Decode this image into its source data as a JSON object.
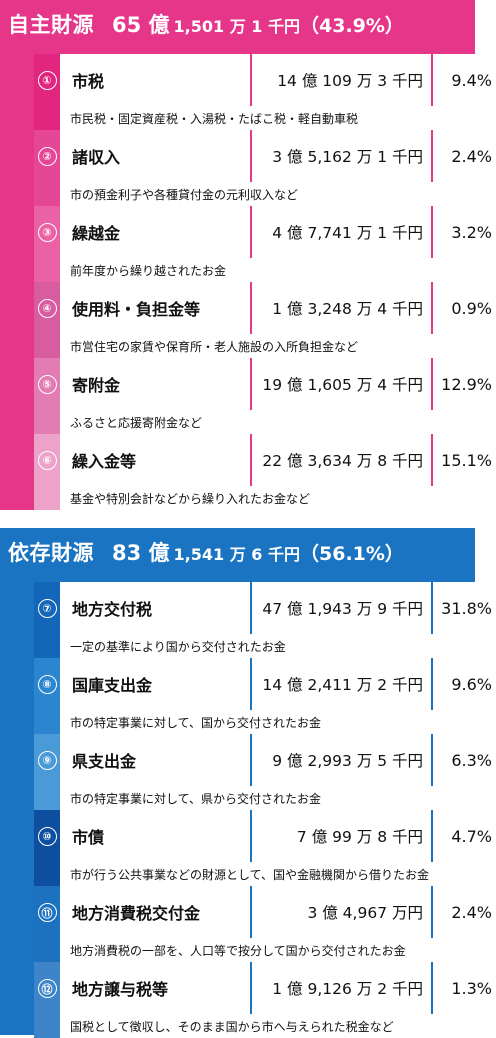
{
  "sections": [
    {
      "name": "自主財源",
      "amount_big": "65 億",
      "amount_rest": "1,501 万 1 千円",
      "percent": "（43.9%）",
      "items": [
        {
          "num": "①",
          "name": "市税",
          "amount": "14 億 109 万 3 千円",
          "percent": "9.4%",
          "desc": "市民税・固定資産税・入湯税・たばこ税・軽自動車税",
          "color": "#e0267e"
        },
        {
          "num": "②",
          "name": "諸収入",
          "amount": "3 億 5,162 万 1 千円",
          "percent": "2.4%",
          "desc": "市の預金利子や各種貸付金の元利収入など",
          "color": "#e64696"
        },
        {
          "num": "③",
          "name": "繰越金",
          "amount": "4 億 7,741 万 1 千円",
          "percent": "3.2%",
          "desc": "前年度から繰り越されたお金",
          "color": "#ea62a5"
        },
        {
          "num": "④",
          "name": "使用料・負担金等",
          "amount": "1 億 3,248 万 4 千円",
          "percent": "0.9%",
          "desc": "市営住宅の家賃や保育所・老人施設の入所負担金など",
          "color": "#d85ca0"
        },
        {
          "num": "⑤",
          "name": "寄附金",
          "amount": "19 億 1,605 万 4 千円",
          "percent": "12.9%",
          "desc": "ふるさと応援寄附金など",
          "color": "#e47cb4"
        },
        {
          "num": "⑥",
          "name": "繰入金等",
          "amount": "22 億 3,634 万 8 千円",
          "percent": "15.1%",
          "desc": "基金や特別会計などから繰り入れたお金など",
          "color": "#eda2c9"
        }
      ]
    },
    {
      "name": "依存財源",
      "amount_big": "83 億",
      "amount_rest": "1,541 万 6 千円",
      "percent": "（56.1%）",
      "items": [
        {
          "num": "⑦",
          "name": "地方交付税",
          "amount": "47 億 1,943 万 9 千円",
          "percent": "31.8%",
          "desc": "一定の基準により国から交付されたお金",
          "color": "#1467b8"
        },
        {
          "num": "⑧",
          "name": "国庫支出金",
          "amount": "14 億 2,411 万 2 千円",
          "percent": "9.6%",
          "desc": "市の特定事業に対して、国から交付されたお金",
          "color": "#2c86cf"
        },
        {
          "num": "⑨",
          "name": "県支出金",
          "amount": "9 億 2,993 万 5 千円",
          "percent": "6.3%",
          "desc": "市の特定事業に対して、県から交付されたお金",
          "color": "#4a9ad8"
        },
        {
          "num": "⑩",
          "name": "市債",
          "amount": "7 億 99 万 8 千円",
          "percent": "4.7%",
          "desc": "市が行う公共事業などの財源として、国や金融機関から借りたお金",
          "color": "#0d4f9e"
        },
        {
          "num": "⑪",
          "name": "地方消費税交付金",
          "amount": "3 億 4,967 万円",
          "percent": "2.4%",
          "desc": "地方消費税の一部を、人口等で按分して国から交付されたお金",
          "color": "#1d72c0"
        },
        {
          "num": "⑫",
          "name": "地方譲与税等",
          "amount": "1 億 9,126 万 2 千円",
          "percent": "1.3%",
          "desc": "国税として徴収し、そのまま国から市へ与えられた税金など",
          "color": "#3d85c8"
        }
      ]
    }
  ]
}
